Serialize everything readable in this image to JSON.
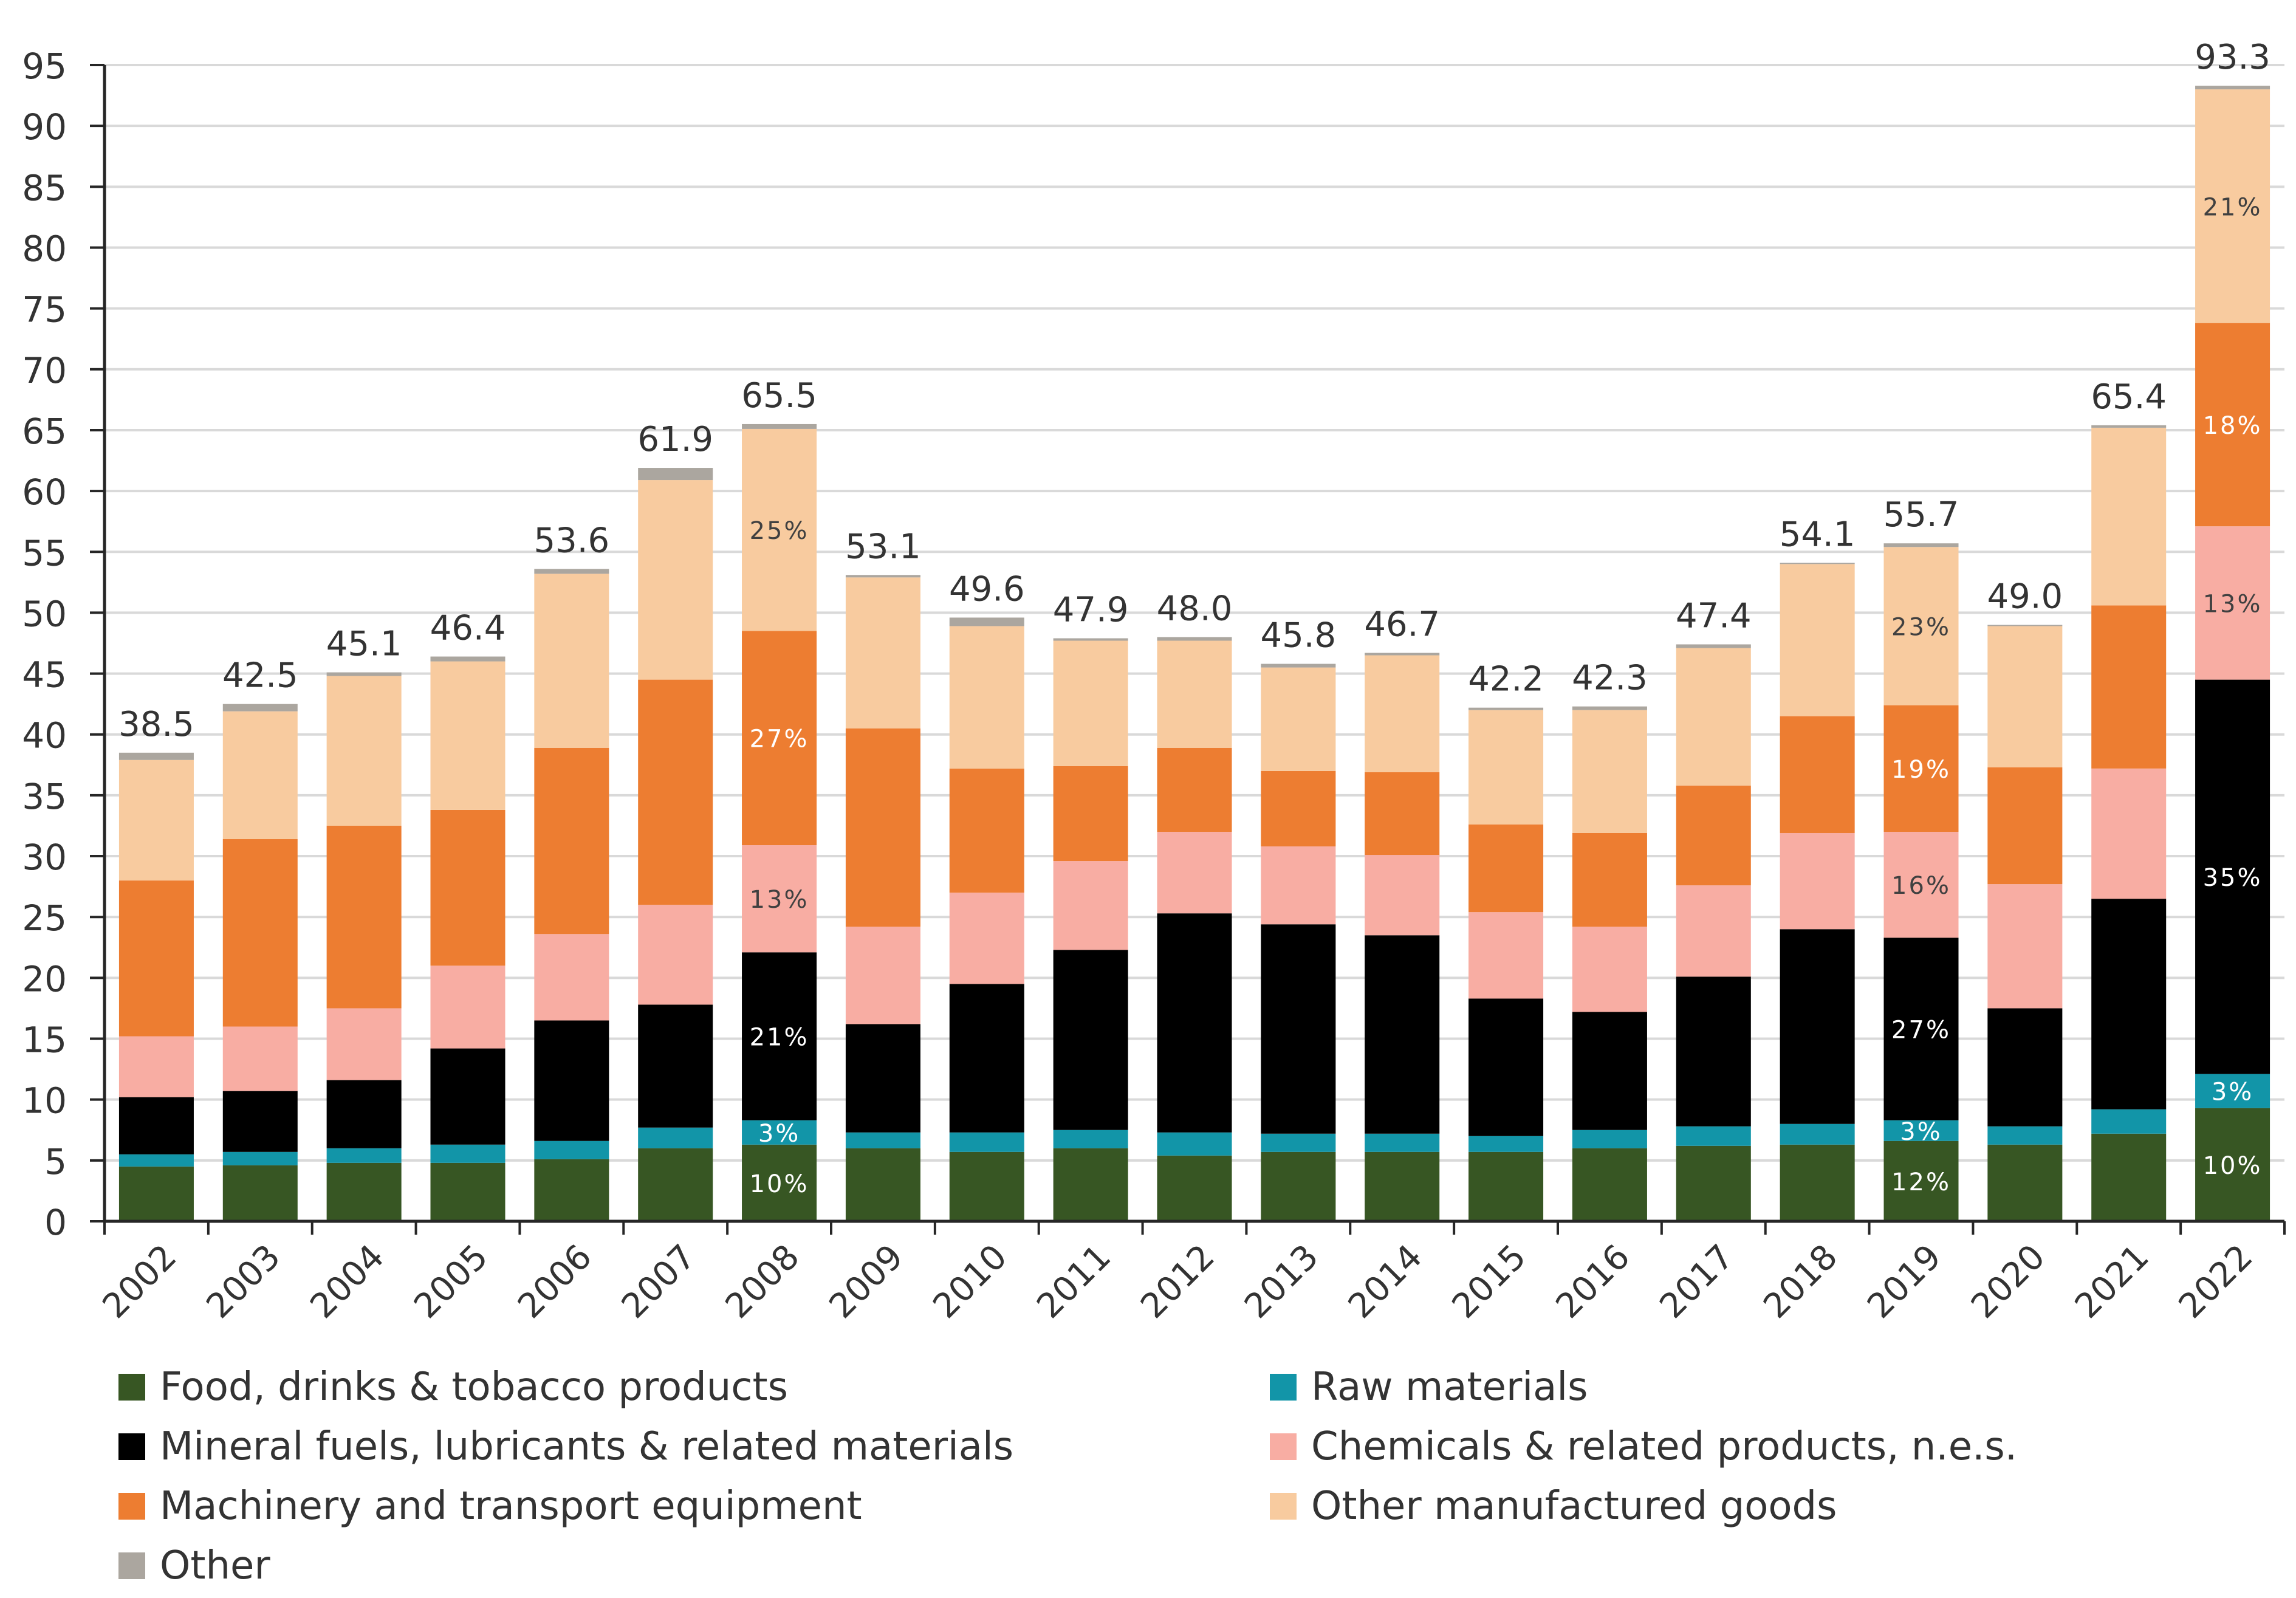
{
  "chart_data": {
    "type": "bar",
    "stacked": true,
    "title": "",
    "xlabel": "",
    "ylabel": "",
    "ylim": [
      0,
      95
    ],
    "yticks": [
      0,
      5,
      10,
      15,
      20,
      25,
      30,
      35,
      40,
      45,
      50,
      55,
      60,
      65,
      70,
      75,
      80,
      85,
      90,
      95
    ],
    "grid": true,
    "legend_position": "bottom",
    "categories": [
      "2002",
      "2003",
      "2004",
      "2005",
      "2006",
      "2007",
      "2008",
      "2009",
      "2010",
      "2011",
      "2012",
      "2013",
      "2014",
      "2015",
      "2016",
      "2017",
      "2018",
      "2019",
      "2020",
      "2021",
      "2022"
    ],
    "series": [
      {
        "name": "Food, drinks & tobacco products",
        "color": "#375623",
        "values": [
          4.5,
          4.6,
          4.8,
          4.8,
          5.1,
          6.0,
          6.3,
          6.0,
          5.7,
          6.0,
          5.4,
          5.7,
          5.7,
          5.7,
          6.0,
          6.2,
          6.3,
          6.6,
          6.3,
          7.2,
          9.3
        ]
      },
      {
        "name": "Raw materials",
        "color": "#1295a8",
        "values": [
          1.0,
          1.1,
          1.2,
          1.5,
          1.5,
          1.7,
          2.0,
          1.3,
          1.6,
          1.5,
          1.9,
          1.5,
          1.5,
          1.3,
          1.5,
          1.6,
          1.7,
          1.7,
          1.5,
          2.0,
          2.8
        ]
      },
      {
        "name": "Mineral fuels, lubricants & related materials",
        "color": "#000000",
        "values": [
          4.7,
          5.0,
          5.6,
          7.9,
          9.9,
          10.1,
          13.8,
          8.9,
          12.2,
          14.8,
          18.0,
          17.2,
          16.3,
          11.3,
          9.7,
          12.3,
          16.0,
          15.0,
          9.7,
          17.3,
          32.4
        ]
      },
      {
        "name": "Chemicals & related products, n.e.s.",
        "color": "#f8ada3",
        "values": [
          5.0,
          5.3,
          5.9,
          6.8,
          7.1,
          8.2,
          8.8,
          8.0,
          7.5,
          7.3,
          6.7,
          6.4,
          6.6,
          7.1,
          7.0,
          7.5,
          7.9,
          8.7,
          10.2,
          10.7,
          12.6
        ]
      },
      {
        "name": "Machinery and transport equipment",
        "color": "#ed7d31",
        "values": [
          12.8,
          15.4,
          15.0,
          12.8,
          15.3,
          18.5,
          17.6,
          16.3,
          10.2,
          7.8,
          6.9,
          6.2,
          6.8,
          7.2,
          7.7,
          8.2,
          9.6,
          10.4,
          9.6,
          13.4,
          16.7
        ]
      },
      {
        "name": "Other manufactured goods",
        "color": "#f8cb9f",
        "values": [
          9.9,
          10.5,
          12.3,
          12.2,
          14.3,
          16.4,
          16.6,
          12.4,
          11.7,
          10.3,
          8.8,
          8.5,
          9.6,
          9.4,
          10.1,
          11.3,
          12.5,
          13.0,
          11.6,
          14.6,
          19.2
        ]
      },
      {
        "name": "Other",
        "color": "#aba69f",
        "values": [
          0.6,
          0.6,
          0.3,
          0.4,
          0.4,
          1.0,
          0.4,
          0.2,
          0.7,
          0.2,
          0.3,
          0.3,
          0.2,
          0.2,
          0.3,
          0.3,
          0.1,
          0.3,
          0.1,
          0.2,
          0.3
        ]
      }
    ],
    "totals": [
      "38.5",
      "42.5",
      "45.1",
      "46.4",
      "53.6",
      "61.9",
      "65.5",
      "53.1",
      "49.6",
      "47.9",
      "48.0",
      "45.8",
      "46.7",
      "42.2",
      "42.3",
      "47.4",
      "54.1",
      "55.7",
      "49.0",
      "65.4",
      "93.3"
    ],
    "annotations": [
      {
        "category": "2008",
        "series": "Other manufactured goods",
        "text": "25%",
        "text_color": "#404040"
      },
      {
        "category": "2008",
        "series": "Machinery and transport equipment",
        "text": "27%",
        "text_color": "#ffffff"
      },
      {
        "category": "2008",
        "series": "Chemicals & related products, n.e.s.",
        "text": "13%",
        "text_color": "#404040"
      },
      {
        "category": "2008",
        "series": "Mineral fuels, lubricants & related materials",
        "text": "21%",
        "text_color": "#ffffff"
      },
      {
        "category": "2008",
        "series": "Raw materials",
        "text": "3%",
        "text_color": "#ffffff"
      },
      {
        "category": "2008",
        "series": "Food, drinks & tobacco products",
        "text": "10%",
        "text_color": "#ffffff"
      },
      {
        "category": "2019",
        "series": "Other manufactured goods",
        "text": "23%",
        "text_color": "#404040"
      },
      {
        "category": "2019",
        "series": "Machinery and transport equipment",
        "text": "19%",
        "text_color": "#ffffff"
      },
      {
        "category": "2019",
        "series": "Chemicals & related products, n.e.s.",
        "text": "16%",
        "text_color": "#404040"
      },
      {
        "category": "2019",
        "series": "Mineral fuels, lubricants & related materials",
        "text": "27%",
        "text_color": "#ffffff"
      },
      {
        "category": "2019",
        "series": "Raw materials",
        "text": "3%",
        "text_color": "#ffffff"
      },
      {
        "category": "2019",
        "series": "Food, drinks & tobacco products",
        "text": "12%",
        "text_color": "#ffffff"
      },
      {
        "category": "2022",
        "series": "Other manufactured goods",
        "text": "21%",
        "text_color": "#404040"
      },
      {
        "category": "2022",
        "series": "Machinery and transport equipment",
        "text": "18%",
        "text_color": "#ffffff"
      },
      {
        "category": "2022",
        "series": "Chemicals & related products, n.e.s.",
        "text": "13%",
        "text_color": "#404040"
      },
      {
        "category": "2022",
        "series": "Mineral fuels, lubricants & related materials",
        "text": "35%",
        "text_color": "#ffffff"
      },
      {
        "category": "2022",
        "series": "Raw materials",
        "text": "3%",
        "text_color": "#ffffff"
      },
      {
        "category": "2022",
        "series": "Food, drinks & tobacco products",
        "text": "10%",
        "text_color": "#ffffff"
      }
    ]
  }
}
